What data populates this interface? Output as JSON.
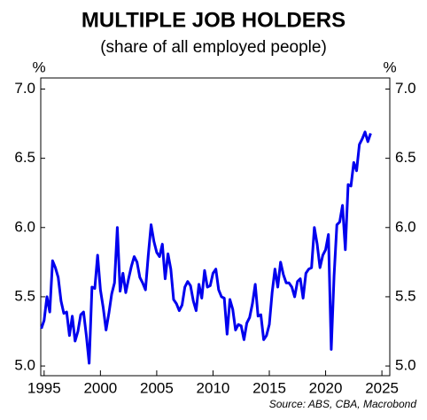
{
  "chart_data": {
    "type": "line",
    "title": "MULTIPLE JOB HOLDERS",
    "subtitle": "(share of all employed people)",
    "y_label": "%",
    "y2_label": "%",
    "source": "Source: ABS, CBA, Macrobond",
    "xlim": [
      1994.7,
      2025.7
    ],
    "xticks": [
      1995,
      2000,
      2005,
      2010,
      2015,
      2020,
      2025
    ],
    "ylim": [
      4.93,
      7.08
    ],
    "yticks": [
      {
        "value": 5,
        "label": "5.0"
      },
      5.5,
      {
        "value": 6,
        "label": "6.0"
      },
      6.5,
      {
        "value": 7,
        "label": "7.0"
      }
    ],
    "y2lim": [
      4.93,
      7.08
    ],
    "y2ticks": [
      {
        "value": 5,
        "label": "5.0"
      },
      5.5,
      {
        "value": 6,
        "label": "6.0"
      },
      6.5,
      {
        "value": 7,
        "label": "7.0"
      }
    ],
    "x": [
      1994.75,
      1995,
      1995.25,
      1995.5,
      1995.75,
      1996,
      1996.25,
      1996.5,
      1996.75,
      1997,
      1997.25,
      1997.5,
      1997.75,
      1998,
      1998.25,
      1998.5,
      1998.75,
      1999,
      1999.25,
      1999.5,
      1999.75,
      2000,
      2000.25,
      2000.5,
      2000.75,
      2001,
      2001.25,
      2001.5,
      2001.75,
      2002,
      2002.25,
      2002.5,
      2002.75,
      2003,
      2003.25,
      2003.5,
      2003.75,
      2004,
      2004.25,
      2004.5,
      2004.75,
      2005,
      2005.25,
      2005.5,
      2005.75,
      2006,
      2006.25,
      2006.5,
      2006.75,
      2007,
      2007.25,
      2007.5,
      2007.75,
      2008,
      2008.25,
      2008.5,
      2008.75,
      2009,
      2009.25,
      2009.5,
      2009.75,
      2010,
      2010.25,
      2010.5,
      2010.75,
      2011,
      2011.25,
      2011.5,
      2011.75,
      2012,
      2012.25,
      2012.5,
      2012.75,
      2013,
      2013.25,
      2013.5,
      2013.75,
      2014,
      2014.25,
      2014.5,
      2014.75,
      2015,
      2015.25,
      2015.5,
      2015.75,
      2016,
      2016.25,
      2016.5,
      2016.75,
      2017,
      2017.25,
      2017.5,
      2017.75,
      2018,
      2018.25,
      2018.5,
      2018.75,
      2019,
      2019.25,
      2019.5,
      2019.75,
      2020,
      2020.25,
      2020.5,
      2020.75,
      2021,
      2021.25,
      2021.5,
      2021.75,
      2022,
      2022.25,
      2022.5,
      2022.75,
      2023,
      2023.25,
      2023.5,
      2023.75,
      2024
    ],
    "series": [
      {
        "name": "Multiple job holders",
        "color": "#0000ee",
        "values": [
          5.27,
          5.33,
          5.5,
          5.39,
          5.76,
          5.71,
          5.64,
          5.47,
          5.38,
          5.39,
          5.22,
          5.36,
          5.18,
          5.25,
          5.37,
          5.39,
          5.22,
          5.02,
          5.57,
          5.56,
          5.8,
          5.55,
          5.42,
          5.26,
          5.38,
          5.52,
          5.6,
          6.0,
          5.54,
          5.67,
          5.53,
          5.63,
          5.72,
          5.79,
          5.75,
          5.64,
          5.6,
          5.55,
          5.8,
          6.02,
          5.9,
          5.82,
          5.79,
          5.88,
          5.63,
          5.81,
          5.7,
          5.48,
          5.45,
          5.4,
          5.44,
          5.57,
          5.61,
          5.58,
          5.47,
          5.4,
          5.59,
          5.49,
          5.69,
          5.57,
          5.58,
          5.67,
          5.7,
          5.55,
          5.5,
          5.49,
          5.23,
          5.48,
          5.41,
          5.26,
          5.3,
          5.29,
          5.19,
          5.31,
          5.35,
          5.45,
          5.59,
          5.36,
          5.37,
          5.19,
          5.22,
          5.3,
          5.53,
          5.7,
          5.57,
          5.75,
          5.66,
          5.6,
          5.6,
          5.57,
          5.5,
          5.61,
          5.63,
          5.49,
          5.67,
          5.7,
          5.71,
          6.0,
          5.88,
          5.71,
          5.8,
          5.84,
          5.95,
          5.12,
          5.65,
          6.02,
          6.04,
          6.16,
          5.84,
          6.31,
          6.3,
          6.47,
          6.41,
          6.6,
          6.64,
          6.69,
          6.62,
          6.68
        ]
      }
    ]
  }
}
